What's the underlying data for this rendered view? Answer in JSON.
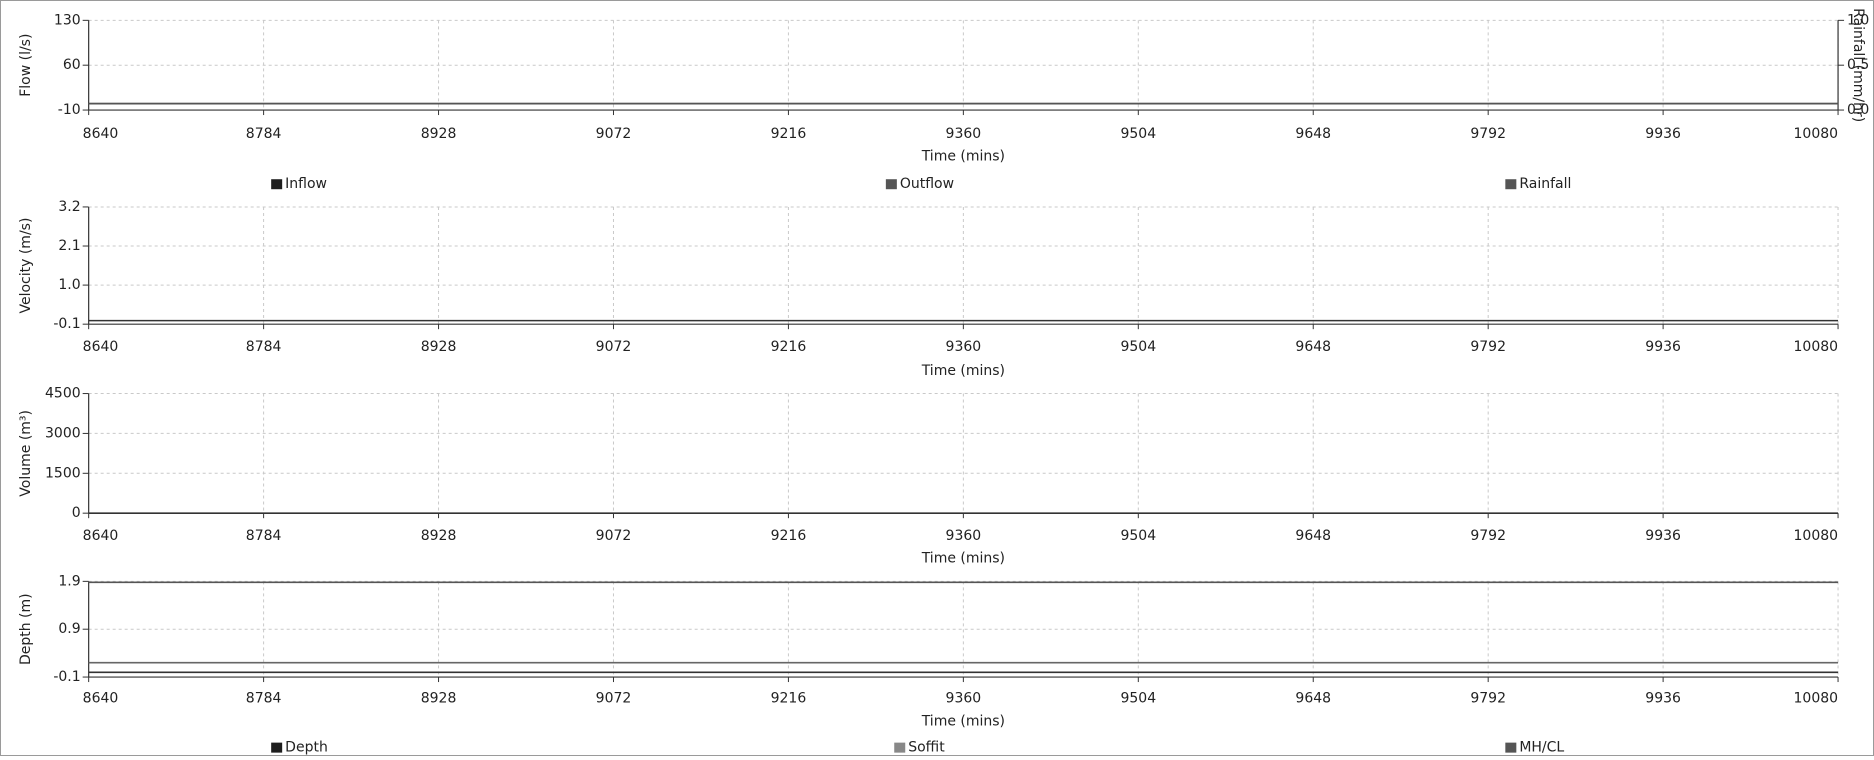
{
  "chart_data": [
    {
      "id": "flow",
      "type": "line",
      "ylabel": "Flow (l/s)",
      "ylabel_right": "Rainfall (mm/hr)",
      "xlabel": "Time (mins)",
      "xlim": [
        8640,
        10080
      ],
      "ylim": [
        -10,
        130
      ],
      "y2lim": [
        0,
        1.0
      ],
      "x_ticks": [
        "8640",
        "8784",
        "8928",
        "9072",
        "9216",
        "9360",
        "9504",
        "9648",
        "9792",
        "9936",
        "10080"
      ],
      "y_ticks": [
        {
          "value": 130,
          "label": "130"
        },
        {
          "value": 60,
          "label": "60"
        },
        {
          "value": -10,
          "label": "-10"
        }
      ],
      "y2_ticks": [
        {
          "value": 1.0,
          "label": "1.0"
        },
        {
          "value": 0.5,
          "label": "0.5"
        },
        {
          "value": 0.0,
          "label": "0.0"
        }
      ],
      "grid": true,
      "legend": [
        {
          "name": "Inflow",
          "color": "#1e1e1e"
        },
        {
          "name": "Outflow",
          "color": "#555555"
        },
        {
          "name": "Rainfall",
          "color": "#555555"
        }
      ],
      "series": [
        {
          "name": "Inflow",
          "color": "#333333",
          "axis": "left",
          "x": [
            8640,
            10080
          ],
          "values": [
            0,
            0
          ]
        },
        {
          "name": "Outflow",
          "color": "#555555",
          "axis": "left",
          "x": [
            8640,
            10080
          ],
          "values": [
            0,
            0
          ]
        },
        {
          "name": "Rainfall",
          "color": "#555555",
          "axis": "right",
          "x": [
            8640,
            10080
          ],
          "values": [
            0,
            0
          ]
        }
      ]
    },
    {
      "id": "velocity",
      "type": "line",
      "ylabel": "Velocity (m/s)",
      "xlabel": "Time (mins)",
      "xlim": [
        8640,
        10080
      ],
      "ylim": [
        -0.1,
        3.2
      ],
      "x_ticks": [
        "8640",
        "8784",
        "8928",
        "9072",
        "9216",
        "9360",
        "9504",
        "9648",
        "9792",
        "9936",
        "10080"
      ],
      "y_ticks": [
        {
          "value": 3.2,
          "label": "3.2"
        },
        {
          "value": 2.1,
          "label": "2.1"
        },
        {
          "value": 1.0,
          "label": "1.0"
        },
        {
          "value": -0.1,
          "label": "-0.1"
        }
      ],
      "grid": true,
      "legend": [],
      "series": [
        {
          "name": "",
          "color": "#333333",
          "axis": "left",
          "x": [
            8640,
            10080
          ],
          "values": [
            0,
            0
          ]
        }
      ]
    },
    {
      "id": "volume",
      "type": "line",
      "ylabel": "Volume (m³)",
      "xlabel": "Time (mins)",
      "xlim": [
        8640,
        10080
      ],
      "ylim": [
        0,
        4500
      ],
      "x_ticks": [
        "8640",
        "8784",
        "8928",
        "9072",
        "9216",
        "9360",
        "9504",
        "9648",
        "9792",
        "9936",
        "10080"
      ],
      "y_ticks": [
        {
          "value": 4500,
          "label": "4500"
        },
        {
          "value": 3000,
          "label": "3000"
        },
        {
          "value": 1500,
          "label": "1500"
        },
        {
          "value": 0,
          "label": "0"
        }
      ],
      "grid": true,
      "legend": [],
      "series": [
        {
          "name": "",
          "color": "#333333",
          "axis": "left",
          "x": [
            8640,
            10080
          ],
          "values": [
            0,
            0
          ]
        }
      ]
    },
    {
      "id": "depth",
      "type": "line",
      "ylabel": "Depth (m)",
      "xlabel": "Time (mins)",
      "xlim": [
        8640,
        10080
      ],
      "ylim": [
        -0.1,
        1.9
      ],
      "x_ticks": [
        "8640",
        "8784",
        "8928",
        "9072",
        "9216",
        "9360",
        "9504",
        "9648",
        "9792",
        "9936",
        "10080"
      ],
      "y_ticks": [
        {
          "value": 1.9,
          "label": "1.9"
        },
        {
          "value": 0.9,
          "label": "0.9"
        },
        {
          "value": -0.1,
          "label": "-0.1"
        }
      ],
      "grid": true,
      "legend": [
        {
          "name": "Depth",
          "color": "#1e1e1e"
        },
        {
          "name": "Soffit",
          "color": "#888888"
        },
        {
          "name": "MH/CL",
          "color": "#555555"
        }
      ],
      "series": [
        {
          "name": "Depth",
          "color": "#333333",
          "axis": "left",
          "x": [
            8640,
            10080
          ],
          "values": [
            0,
            0
          ]
        },
        {
          "name": "Soffit",
          "color": "#666666",
          "axis": "left",
          "x": [
            8640,
            10080
          ],
          "values": [
            0.2,
            0.2
          ]
        },
        {
          "name": "MH/CL",
          "color": "#555555",
          "axis": "left",
          "x": [
            8640,
            10080
          ],
          "values": [
            1.88,
            1.88
          ]
        }
      ]
    }
  ]
}
